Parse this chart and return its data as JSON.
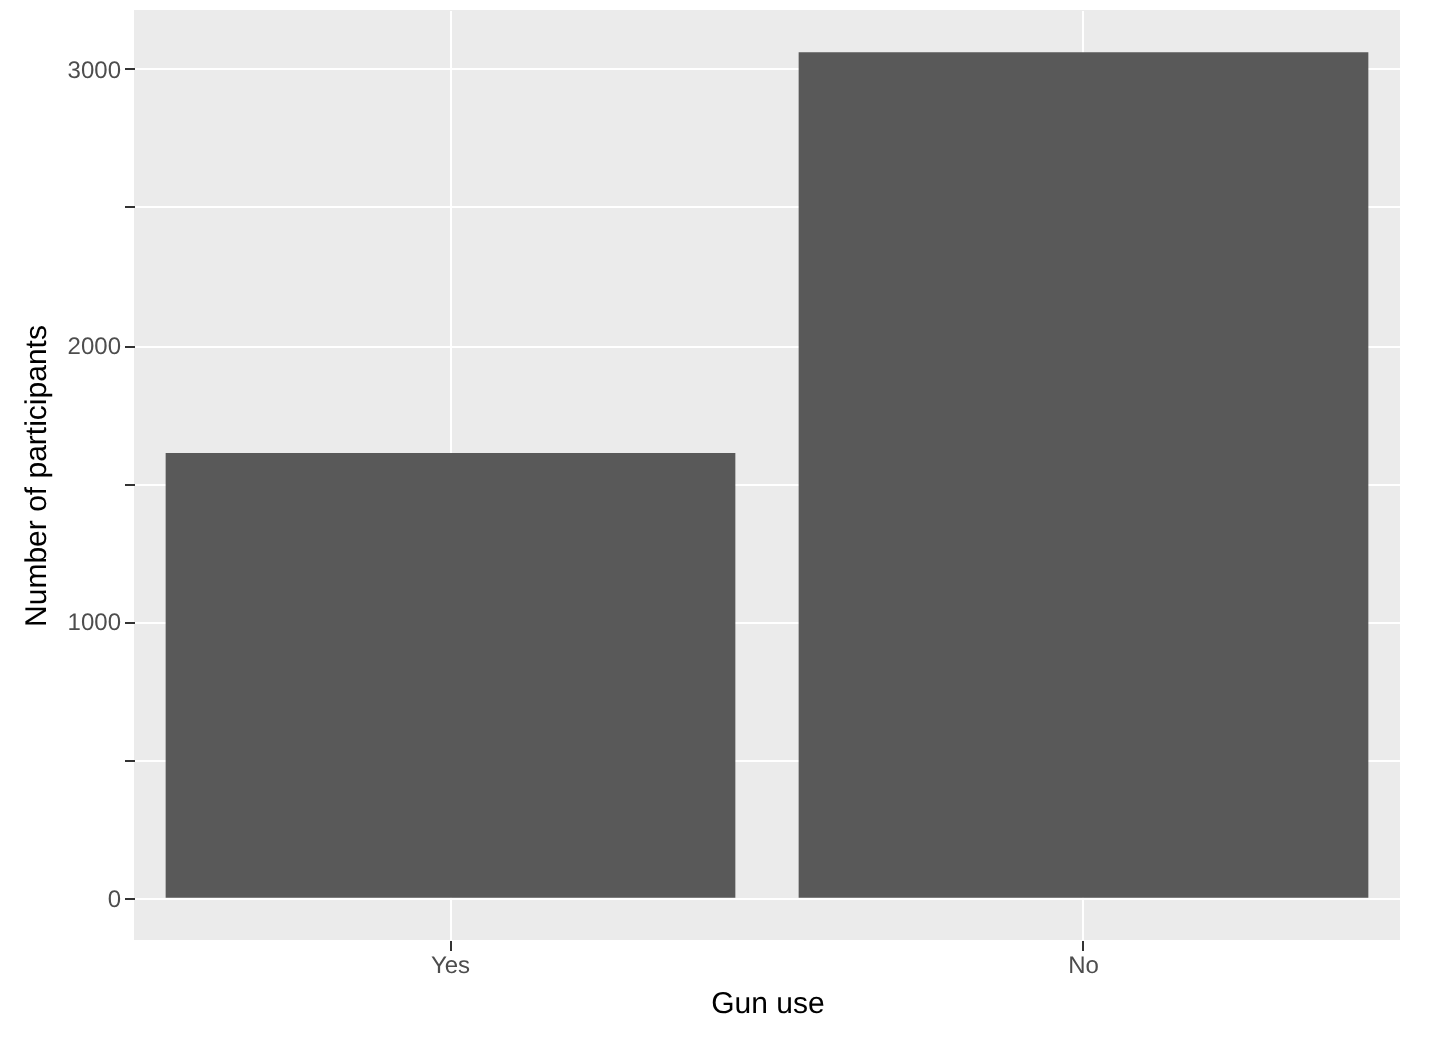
{
  "chart_data": {
    "type": "bar",
    "xlabel": "Gun use",
    "ylabel": "Number of participants",
    "categories": [
      "Yes",
      "No"
    ],
    "values": [
      1610,
      3060
    ],
    "color": "#595959",
    "ylim": [
      -153,
      3213
    ],
    "yticks": [
      0,
      {
        "value": 500,
        "label": null
      },
      1000,
      {
        "value": 1500,
        "label": null
      },
      2000,
      {
        "value": 2500,
        "label": null
      },
      3000
    ],
    "grid": true
  }
}
